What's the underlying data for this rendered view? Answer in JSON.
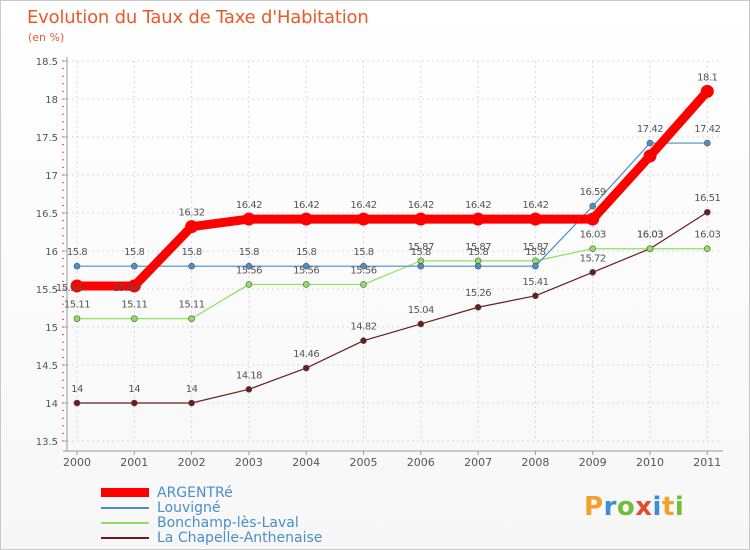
{
  "title": "Evolution du Taux de Taxe d'Habitation",
  "subtitle": "(en %)",
  "logo_text": "Proxiti",
  "chart_data": {
    "type": "line",
    "title": "Evolution du Taux de Taxe d'Habitation",
    "ylabel": "(en %)",
    "xlabel": "",
    "x": [
      "2000",
      "2001",
      "2002",
      "2003",
      "2004",
      "2005",
      "2006",
      "2007",
      "2008",
      "2009",
      "2010",
      "2011"
    ],
    "ylim": [
      13.5,
      18.5
    ],
    "yticks": [
      "13.5",
      "14",
      "14.5",
      "15",
      "15.5",
      "16",
      "16.5",
      "17",
      "17.5",
      "18",
      "18.5"
    ],
    "legend_position": "bottom-left",
    "series": [
      {
        "name": "ARGENTRé",
        "color": "#ff0000",
        "values": [
          15.54,
          15.54,
          16.32,
          16.42,
          16.42,
          16.42,
          16.42,
          16.42,
          16.42,
          16.42,
          17.25,
          18.1
        ],
        "labels": [
          "15.54",
          "15.54",
          "16.32",
          "16.42",
          "16.42",
          "16.42",
          "16.42",
          "16.42",
          "16.42",
          "",
          "",
          "18.1"
        ]
      },
      {
        "name": "Louvigné",
        "color": "#4a8fc8",
        "values": [
          15.8,
          15.8,
          15.8,
          15.8,
          15.8,
          15.8,
          15.8,
          15.8,
          15.8,
          16.59,
          17.42,
          17.42
        ],
        "labels": [
          "15.8",
          "15.8",
          "15.8",
          "15.8",
          "15.8",
          "15.8",
          "15.8",
          "15.8",
          "15.8",
          "16.59",
          "17.42",
          "17.42"
        ]
      },
      {
        "name": "Bonchamp-lès-Laval",
        "color": "#90e060",
        "values": [
          15.11,
          15.11,
          15.11,
          15.56,
          15.56,
          15.56,
          15.87,
          15.87,
          15.87,
          16.03,
          16.03,
          16.03
        ],
        "labels": [
          "15.11",
          "15.11",
          "15.11",
          "15.56",
          "15.56",
          "15.56",
          "15.87",
          "15.87",
          "15.87",
          "16.03",
          "16.03",
          "16.03"
        ]
      },
      {
        "name": "La Chapelle-Anthenaise",
        "color": "#6b1d1d",
        "values": [
          14,
          14,
          14,
          14.18,
          14.46,
          14.82,
          15.04,
          15.26,
          15.41,
          15.72,
          16.03,
          16.51
        ],
        "labels": [
          "14",
          "14",
          "14",
          "14.18",
          "14.46",
          "14.82",
          "15.04",
          "15.26",
          "15.41",
          "15.72",
          "16.03",
          "16.51"
        ]
      }
    ]
  },
  "legend": [
    {
      "label": "ARGENTRé",
      "color": "#ff0000"
    },
    {
      "label": "Louvigné",
      "color": "#4a8fc8"
    },
    {
      "label": "Bonchamp-lès-Laval",
      "color": "#90e060"
    },
    {
      "label": "La Chapelle-Anthenaise",
      "color": "#6b1d1d"
    }
  ]
}
